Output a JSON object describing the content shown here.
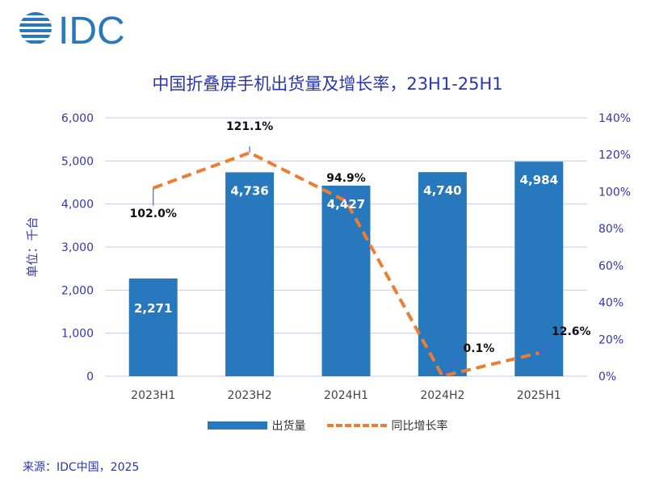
{
  "logo": {
    "text": "IDC",
    "color": "#2878bd"
  },
  "title": "中国折叠屏手机出货量及增长率，23H1-25H1",
  "source": "来源：IDC中国，2025",
  "colors": {
    "bar": "#2878bd",
    "line": "#ed7d31",
    "axis_text": "#3535b0",
    "grid": "#c9c9f2",
    "leader": "#5a5ae0"
  },
  "chart_data": {
    "type": "bar+line",
    "title": "中国折叠屏手机出货量及增长率，23H1-25H1",
    "categories": [
      "2023H1",
      "2023H2",
      "2024H1",
      "2024H2",
      "2025H1"
    ],
    "ylabel": "单位：千台",
    "ylim": [
      0,
      6000
    ],
    "y2lim": [
      0,
      140
    ],
    "yticks": [
      "0",
      "1,000",
      "2,000",
      "3,000",
      "4,000",
      "5,000",
      "6,000"
    ],
    "y2ticks": [
      "0%",
      "20%",
      "40%",
      "60%",
      "80%",
      "100%",
      "120%",
      "140%"
    ],
    "grid": true,
    "legend_position": "bottom",
    "series": [
      {
        "name": "出货量",
        "type": "bar",
        "axis": "left",
        "values": [
          2271,
          4736,
          4427,
          4740,
          4984
        ],
        "labels": [
          "2,271",
          "4,736",
          "4,427",
          "4,740",
          "4,984"
        ]
      },
      {
        "name": "同比增长率",
        "type": "line",
        "axis": "right",
        "values": [
          102.0,
          121.1,
          94.9,
          0.1,
          12.6
        ],
        "labels": [
          "102.0%",
          "121.1%",
          "94.9%",
          "0.1%",
          "12.6%"
        ]
      }
    ]
  }
}
